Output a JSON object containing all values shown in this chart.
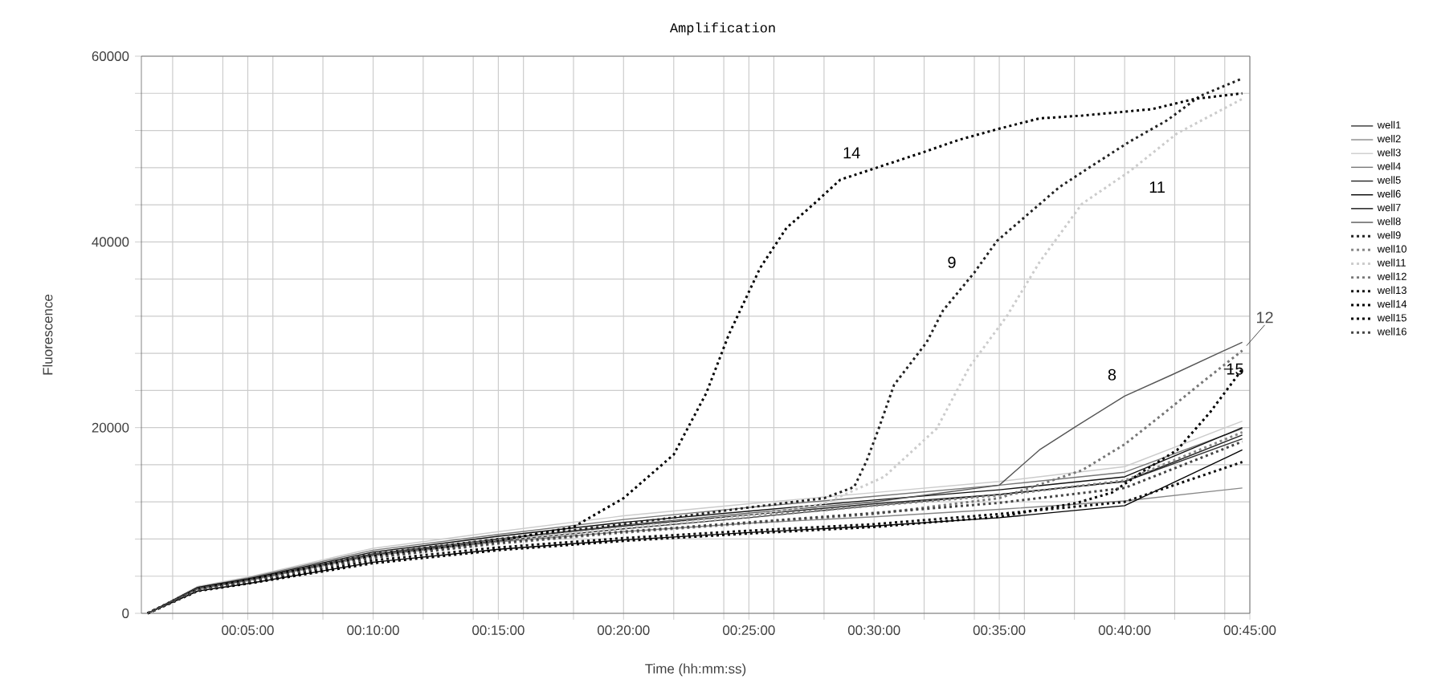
{
  "chart_data": {
    "type": "line",
    "title": "Amplification",
    "xlabel": "Time (hh:mm:ss)",
    "ylabel": "Fluorescence",
    "xlim": [
      0.0125,
      0.75
    ],
    "ylim": [
      0,
      60000
    ],
    "xticks": [
      {
        "value": 0.0333,
        "label": null
      },
      {
        "value": 0.0667,
        "label": null
      },
      {
        "value": 0.0833,
        "label": "00:05:00"
      },
      {
        "value": 0.1,
        "label": null
      },
      {
        "value": 0.1333,
        "label": null
      },
      {
        "value": 0.1667,
        "label": "00:10:00"
      },
      {
        "value": 0.2,
        "label": null
      },
      {
        "value": 0.2333,
        "label": null
      },
      {
        "value": 0.25,
        "label": "00:15:00"
      },
      {
        "value": 0.2667,
        "label": null
      },
      {
        "value": 0.3,
        "label": null
      },
      {
        "value": 0.3333,
        "label": "00:20:00"
      },
      {
        "value": 0.3667,
        "label": null
      },
      {
        "value": 0.4,
        "label": null
      },
      {
        "value": 0.4167,
        "label": "00:25:00"
      },
      {
        "value": 0.4333,
        "label": null
      },
      {
        "value": 0.4667,
        "label": null
      },
      {
        "value": 0.5,
        "label": "00:30:00"
      },
      {
        "value": 0.5333,
        "label": null
      },
      {
        "value": 0.5667,
        "label": null
      },
      {
        "value": 0.5833,
        "label": "00:35:00"
      },
      {
        "value": 0.6,
        "label": null
      },
      {
        "value": 0.6333,
        "label": null
      },
      {
        "value": 0.6667,
        "label": "00:40:00"
      },
      {
        "value": 0.7,
        "label": null
      },
      {
        "value": 0.7333,
        "label": null
      },
      {
        "value": 0.75,
        "label": "00:45:00"
      }
    ],
    "yticks": [
      0,
      {
        "value": 4000,
        "label": null
      },
      {
        "value": 8000,
        "label": null
      },
      {
        "value": 12000,
        "label": null
      },
      {
        "value": 16000,
        "label": null
      },
      20000,
      {
        "value": 24000,
        "label": null
      },
      {
        "value": 28000,
        "label": null
      },
      {
        "value": 32000,
        "label": null
      },
      {
        "value": 36000,
        "label": null
      },
      40000,
      {
        "value": 44000,
        "label": null
      },
      {
        "value": 48000,
        "label": null
      },
      {
        "value": 52000,
        "label": null
      },
      {
        "value": 56000,
        "label": null
      },
      60000
    ],
    "grid": true,
    "legend": "right",
    "marker": "none",
    "annotations": [
      {
        "text": "14",
        "x": 0.485,
        "y": 49600
      },
      {
        "text": "9",
        "x": 0.5517,
        "y": 37800
      },
      {
        "text": "11",
        "x": 0.6883,
        "y": 45900
      },
      {
        "text": "8",
        "x": 0.6583,
        "y": 25700
      },
      {
        "text": "12",
        "x": 0.745,
        "y": 28300
      },
      {
        "text": "15",
        "x": 0.745,
        "y": 26300
      }
    ],
    "series": [
      {
        "name": "well1",
        "color": "#333333",
        "line_style": "solid",
        "x": [
          0.0167,
          0.05,
          0.0833,
          0.1667,
          0.25,
          0.3333,
          0.4167,
          0.5,
          0.5833,
          0.6667,
          0.745
        ],
        "values": [
          0,
          2700,
          3600,
          6300,
          7800,
          9100,
          10300,
          11600,
          12800,
          14200,
          18800
        ]
      },
      {
        "name": "well2",
        "color": "#888888",
        "line_style": "solid",
        "x": [
          0.0167,
          0.05,
          0.0833,
          0.1667,
          0.25,
          0.3333,
          0.4167,
          0.5,
          0.5833,
          0.6667,
          0.745
        ],
        "values": [
          0,
          2600,
          3500,
          6200,
          7700,
          8800,
          9700,
          10400,
          11200,
          12100,
          13500
        ]
      },
      {
        "name": "well3",
        "color": "#cccccc",
        "line_style": "solid",
        "x": [
          0.0167,
          0.05,
          0.0833,
          0.1667,
          0.25,
          0.3333,
          0.4167,
          0.5,
          0.5833,
          0.6667,
          0.745
        ],
        "values": [
          0,
          2900,
          3900,
          7000,
          8800,
          10500,
          11800,
          13000,
          14200,
          15800,
          20700
        ]
      },
      {
        "name": "well4",
        "color": "#777777",
        "line_style": "solid",
        "x": [
          0.0167,
          0.05,
          0.0833,
          0.1667,
          0.25,
          0.3333,
          0.4167,
          0.5,
          0.5833,
          0.6667,
          0.745
        ],
        "values": [
          0,
          2800,
          3800,
          6800,
          8500,
          10100,
          11400,
          12600,
          13800,
          15200,
          19900
        ]
      },
      {
        "name": "well5",
        "color": "#222222",
        "line_style": "solid",
        "x": [
          0.0167,
          0.05,
          0.0833,
          0.1667,
          0.25,
          0.3333,
          0.4167,
          0.5,
          0.5833,
          0.6667,
          0.745
        ],
        "values": [
          0,
          2700,
          3600,
          6400,
          8000,
          9400,
          10600,
          11800,
          12800,
          14200,
          19200
        ]
      },
      {
        "name": "well6",
        "color": "#000000",
        "line_style": "solid",
        "x": [
          0.0167,
          0.05,
          0.0833,
          0.1667,
          0.25,
          0.3333,
          0.4167,
          0.5,
          0.5833,
          0.6667,
          0.745
        ],
        "values": [
          0,
          2400,
          3200,
          5500,
          6900,
          7900,
          8700,
          9400,
          10300,
          11600,
          17600
        ]
      },
      {
        "name": "well7",
        "color": "#111111",
        "line_style": "solid",
        "x": [
          0.0167,
          0.05,
          0.0833,
          0.1667,
          0.25,
          0.3333,
          0.4167,
          0.5,
          0.5833,
          0.6667,
          0.745
        ],
        "values": [
          0,
          2800,
          3700,
          6600,
          8300,
          9800,
          11000,
          12200,
          13300,
          14700,
          20000
        ]
      },
      {
        "name": "well8",
        "color": "#555555",
        "line_style": "solid",
        "x": [
          0.0167,
          0.05,
          0.0833,
          0.1667,
          0.25,
          0.3333,
          0.4167,
          0.5,
          0.5833,
          0.61,
          0.635,
          0.6667,
          0.6983,
          0.745
        ],
        "values": [
          0,
          2700,
          3600,
          6400,
          8000,
          9500,
          10800,
          12000,
          13800,
          17600,
          20200,
          23400,
          25700,
          29200
        ]
      },
      {
        "name": "well9",
        "color": "#222222",
        "line_style": "dotted",
        "x": [
          0.0167,
          0.05,
          0.0833,
          0.1667,
          0.25,
          0.3333,
          0.4167,
          0.4667,
          0.4867,
          0.495,
          0.5033,
          0.5133,
          0.535,
          0.5458,
          0.5667,
          0.5817,
          0.6025,
          0.6233,
          0.645,
          0.67,
          0.695,
          0.7167,
          0.745
        ],
        "values": [
          0,
          2700,
          3600,
          6400,
          8000,
          9600,
          11400,
          12400,
          13600,
          16400,
          20000,
          24600,
          29200,
          32600,
          36700,
          40100,
          43000,
          45900,
          48200,
          50800,
          53100,
          55700,
          57600
        ]
      },
      {
        "name": "well10",
        "color": "#888888",
        "line_style": "dotted",
        "x": [
          0.0167,
          0.05,
          0.0833,
          0.1667,
          0.25,
          0.3333,
          0.4167,
          0.5,
          0.5833,
          0.6667,
          0.745
        ],
        "values": [
          0,
          2600,
          3500,
          6200,
          7800,
          9200,
          10400,
          11600,
          12700,
          14300,
          19500
        ]
      },
      {
        "name": "well11",
        "color": "#cccccc",
        "line_style": "dotted",
        "x": [
          0.0167,
          0.05,
          0.0833,
          0.1667,
          0.25,
          0.3333,
          0.4167,
          0.4667,
          0.5067,
          0.5417,
          0.5633,
          0.5883,
          0.61,
          0.6383,
          0.67,
          0.7017,
          0.745
        ],
        "values": [
          0,
          2600,
          3500,
          6200,
          7800,
          9200,
          10500,
          11800,
          14700,
          19900,
          26500,
          32000,
          37800,
          44100,
          47600,
          51700,
          55400
        ]
      },
      {
        "name": "well12",
        "color": "#777777",
        "line_style": "dotted",
        "x": [
          0.0167,
          0.05,
          0.0833,
          0.1667,
          0.25,
          0.3333,
          0.4167,
          0.5,
          0.5833,
          0.6383,
          0.6667,
          0.6917,
          0.72,
          0.745
        ],
        "values": [
          0,
          2500,
          3400,
          6000,
          7500,
          8700,
          9700,
          10700,
          12400,
          15400,
          18200,
          21400,
          25100,
          28300
        ]
      },
      {
        "name": "well13",
        "color": "#111111",
        "line_style": "dotted",
        "x": [
          0.0167,
          0.05,
          0.0833,
          0.1667,
          0.25,
          0.3333,
          0.4167,
          0.5,
          0.5833,
          0.6667,
          0.745
        ],
        "values": [
          0,
          2500,
          3300,
          5700,
          7100,
          8100,
          8900,
          9600,
          10700,
          12000,
          16300
        ]
      },
      {
        "name": "well14",
        "color": "#000000",
        "line_style": "dotted",
        "x": [
          0.0167,
          0.05,
          0.0833,
          0.1667,
          0.25,
          0.3,
          0.3333,
          0.3667,
          0.3883,
          0.4033,
          0.4242,
          0.4417,
          0.46,
          0.4775,
          0.5,
          0.5317,
          0.5567,
          0.5833,
          0.61,
          0.6383,
          0.685,
          0.7133,
          0.745
        ],
        "values": [
          0,
          2600,
          3600,
          6200,
          7800,
          9300,
          12400,
          17100,
          23700,
          30000,
          37200,
          41500,
          44100,
          46700,
          47900,
          49600,
          51000,
          52200,
          53300,
          53600,
          54300,
          55400,
          56000
        ]
      },
      {
        "name": "well15",
        "color": "#000000",
        "line_style": "dotted",
        "x": [
          0.0167,
          0.05,
          0.0833,
          0.1667,
          0.25,
          0.3333,
          0.4167,
          0.5,
          0.5833,
          0.635,
          0.6583,
          0.68,
          0.7017,
          0.7233,
          0.745
        ],
        "values": [
          0,
          2400,
          3200,
          5400,
          6800,
          7800,
          8600,
          9300,
          10400,
          11900,
          13000,
          15400,
          17600,
          21600,
          26300
        ]
      },
      {
        "name": "well16",
        "color": "#444444",
        "line_style": "dotted",
        "x": [
          0.0167,
          0.05,
          0.0833,
          0.1667,
          0.25,
          0.3333,
          0.4167,
          0.5,
          0.5833,
          0.6667,
          0.745
        ],
        "values": [
          0,
          2500,
          3400,
          6000,
          7600,
          8800,
          9800,
          10800,
          11900,
          13500,
          18500
        ]
      }
    ]
  }
}
